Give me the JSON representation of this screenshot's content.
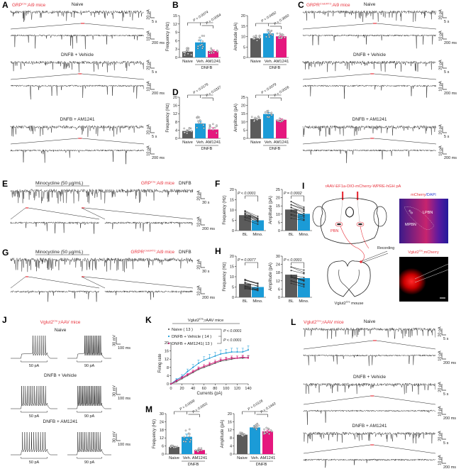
{
  "panel_labels": [
    "A",
    "B",
    "C",
    "D",
    "E",
    "F",
    "G",
    "H",
    "I",
    "J",
    "K",
    "L",
    "M"
  ],
  "colors": {
    "naive": "#5b5b5b",
    "vehicle": "#1b9bd7",
    "am1241": "#e5177e",
    "red_text": "#e8323c",
    "blue_text": "#2b3fd6",
    "trace": "#1e1e1e"
  },
  "strains": {
    "grp": {
      "base": "GRP",
      "sup": "Cre",
      "rest": ":Ai9 mice"
    },
    "grpr": {
      "base": "GRPR",
      "sup": "CreERT2",
      "rest": ":Ai9 mice"
    },
    "vglut": {
      "base": "Vglut2",
      "sup": "Cre",
      "rest": ";rAAV mice"
    },
    "vglut_mouse": {
      "base": "Vglut2",
      "sup": "Cre",
      "rest": " mouse"
    },
    "vglut_mcherry": {
      "base": "Vglut2",
      "sup": "Cre",
      "rest": ";mCherry"
    }
  },
  "traces": {
    "conditions": [
      "Naive",
      "DNFB + Vehicle",
      "DNFB + AM1241"
    ],
    "scale_long": [
      "20 pA",
      "5 s"
    ],
    "scale_zoom": [
      "10 pA",
      "200 ms"
    ]
  },
  "minocycline": {
    "drug": "Minocycline (50 µg/mL)",
    "condition": "DNFB",
    "scale_long": [
      "20 pA",
      "30 s"
    ],
    "scale_zoom": [
      "10 pA",
      "200 ms"
    ]
  },
  "diagram": {
    "virus": "rAAV-EF1a-DIO-mCherry-WPRE-hGH pA",
    "pbn": "PBN",
    "recording": "Recording",
    "img1_title_a": "mCherry",
    "img1_title_b": "/DAPI",
    "lpbn": "LPBN",
    "mpbn": "MPBN",
    "scp": "scp"
  },
  "current_clamp": {
    "conditions": [
      "Naive",
      "DNFB + Vehicle",
      "DNFB + AM1241"
    ],
    "scale": [
      "30 mV",
      "100 ms"
    ],
    "steps": [
      "50 pA",
      "90 pA"
    ]
  },
  "chart_data": [
    {
      "id": "B-frequency",
      "type": "bar",
      "ylabel": "Frequency (Hz)",
      "ylim": [
        0,
        15
      ],
      "yticks": [
        "0",
        "3",
        "6",
        "9",
        "12",
        "15"
      ],
      "categories": [
        "Naive",
        "Veh.",
        "AM1241"
      ],
      "group_label": "DNFB",
      "values": [
        2.1,
        5.4,
        2.3
      ],
      "sem": [
        0.5,
        0.9,
        0.4
      ],
      "p_values": [
        "P = 0.0074",
        "P = 0.0054"
      ]
    },
    {
      "id": "B-amplitude",
      "type": "bar",
      "ylabel": "Amplitude (pA)",
      "ylim": [
        0,
        20
      ],
      "yticks": [
        "0",
        "5",
        "10",
        "15",
        "20"
      ],
      "categories": [
        "Naive",
        "Veh.",
        "AM1241"
      ],
      "group_label": "DNFB",
      "values": [
        9.2,
        11.5,
        10.1
      ],
      "sem": [
        0.5,
        0.7,
        0.5
      ],
      "p_values": [
        "P = 0.0492",
        "P = 0.3650"
      ]
    },
    {
      "id": "D-frequency",
      "type": "bar",
      "ylabel": "Frequency (Hz)",
      "ylim": [
        0,
        20
      ],
      "yticks": [
        "0",
        "4",
        "8",
        "12",
        "16",
        "20"
      ],
      "categories": [
        "Naive",
        "Veh.",
        "AM1241"
      ],
      "group_label": "DNFB",
      "values": [
        3.6,
        7.2,
        4.3
      ],
      "sem": [
        0.5,
        1.1,
        0.9
      ],
      "p_values": [
        "P = 0.0176",
        "P = 0.0337"
      ]
    },
    {
      "id": "D-amplitude",
      "type": "bar",
      "ylabel": "Amplitude (pA)",
      "ylim": [
        0,
        25
      ],
      "yticks": [
        "0",
        "5",
        "10",
        "15",
        "20",
        "25"
      ],
      "categories": [
        "Naive",
        "Veh.",
        "AM1241"
      ],
      "group_label": "DNFB",
      "values": [
        11.7,
        14.8,
        11.3
      ],
      "sem": [
        0.5,
        1.0,
        0.5
      ],
      "p_values": [
        "P = 0.0079",
        "P = 0.0026"
      ]
    },
    {
      "id": "F-frequency",
      "type": "bar",
      "ylabel": "Frequency (Hz)",
      "ylim": [
        0,
        20
      ],
      "yticks": [
        "0",
        "5",
        "10",
        "15",
        "20"
      ],
      "categories": [
        "BL",
        "Mino."
      ],
      "values": [
        7.5,
        5.0
      ],
      "p_values": [
        "P < 0.0001"
      ]
    },
    {
      "id": "F-amplitude",
      "type": "bar",
      "ylabel": "Amplitude (pA)",
      "ylim": [
        0,
        25
      ],
      "yticks": [
        "0",
        "5",
        "10",
        "15",
        "20",
        "25"
      ],
      "categories": [
        "BL",
        "Mino."
      ],
      "values": [
        12.8,
        10.2
      ],
      "p_values": [
        "P = 0.0002"
      ]
    },
    {
      "id": "H-frequency",
      "type": "bar",
      "ylabel": "Frequency (Hz)",
      "ylim": [
        0,
        20
      ],
      "yticks": [
        "0",
        "5",
        "10",
        "15",
        "20"
      ],
      "categories": [
        "BL",
        "Mino."
      ],
      "values": [
        6.5,
        5.0
      ],
      "p_values": [
        "P = 0.0077"
      ]
    },
    {
      "id": "H-amplitude",
      "type": "bar",
      "ylabel": "Amplitude (pA)",
      "ylim": [
        0,
        30
      ],
      "yticks": [
        "0",
        "6",
        "12",
        "18",
        "24",
        "30"
      ],
      "categories": [
        "BL",
        "Mino."
      ],
      "values": [
        16.5,
        14.0
      ],
      "p_values": [
        "P < 0.0001"
      ]
    },
    {
      "id": "M-frequency",
      "type": "bar",
      "ylabel": "Frequency (Hz)",
      "ylim": [
        0,
        30
      ],
      "yticks": [
        "0",
        "6",
        "12",
        "18",
        "24",
        "30"
      ],
      "categories": [
        "Naive",
        "Veh.",
        "AM1241"
      ],
      "group_label": "DNFB",
      "values": [
        5.3,
        12.8,
        3.0
      ],
      "sem": [
        0.5,
        2.0,
        0.5
      ],
      "p_values": [
        "P = 0.0009",
        "P = 0.0001"
      ]
    },
    {
      "id": "M-amplitude",
      "type": "bar",
      "ylabel": "Amplitude (pA)",
      "ylim": [
        0,
        20
      ],
      "yticks": [
        "0",
        "4",
        "8",
        "12",
        "16",
        "20"
      ],
      "categories": [
        "Naive",
        "Veh.",
        "AM1241"
      ],
      "group_label": "DNFB",
      "values": [
        9.6,
        13.2,
        11.3
      ],
      "sem": [
        0.4,
        0.9,
        0.6
      ],
      "p_values": [
        "P = 0.0126",
        "P = 0.1443"
      ]
    },
    {
      "id": "K-firing",
      "type": "line",
      "ylabel": "Firing rate",
      "xlabel": "Currents (pA)",
      "ylim": [
        0,
        20
      ],
      "xlim": [
        0,
        140
      ],
      "yticks": [
        "0",
        "4",
        "8",
        "12",
        "16",
        "20"
      ],
      "xticks": [
        "0",
        "20",
        "40",
        "60",
        "80",
        "100",
        "120",
        "140"
      ],
      "x": [
        0,
        10,
        20,
        30,
        40,
        50,
        60,
        70,
        80,
        90,
        100,
        110,
        120,
        130,
        140
      ],
      "series": [
        {
          "name": "Naive ( 13 )",
          "values": [
            0,
            1,
            2.5,
            4,
            5.5,
            7,
            8,
            9,
            10,
            11,
            11.5,
            12,
            12.5,
            12.5,
            12.8
          ],
          "sem": [
            0,
            0.4,
            0.5,
            0.6,
            0.7,
            0.8,
            0.8,
            0.9,
            0.9,
            1,
            1,
            1,
            1,
            1,
            1
          ]
        },
        {
          "name": "DNFB + Vehicle ( 14 )",
          "values": [
            0,
            2,
            3.5,
            6,
            8,
            10,
            11.5,
            12.5,
            13.5,
            14.5,
            15,
            15.5,
            15.5,
            15.5,
            16.5
          ],
          "sem": [
            0,
            0.6,
            1,
            1.2,
            1.4,
            1.6,
            1.7,
            1.8,
            1.8,
            1.8,
            1.8,
            1.8,
            1.8,
            1.8,
            2
          ]
        },
        {
          "name": "DNFB + AM1241( 13 )",
          "values": [
            0,
            1.5,
            3,
            4.5,
            6,
            7.5,
            8.5,
            9.5,
            10.5,
            11.5,
            12,
            12.5,
            12.5,
            13,
            12.5
          ],
          "sem": [
            0,
            0.4,
            0.5,
            0.6,
            0.7,
            0.8,
            0.9,
            1,
            1,
            1,
            1,
            1,
            1,
            1,
            1
          ]
        }
      ],
      "p_values": [
        "P < 0.0001",
        "P < 0.0001"
      ]
    }
  ]
}
